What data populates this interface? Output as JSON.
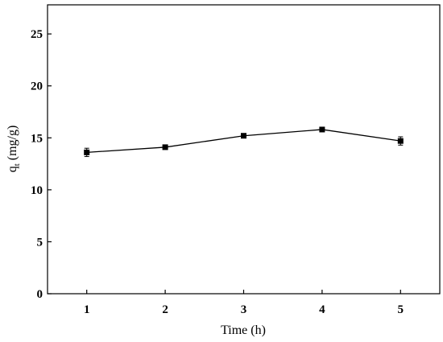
{
  "chart_data": {
    "type": "line",
    "title": "",
    "xlabel": "Time (h)",
    "ylabel_main": "q",
    "ylabel_sub": "t",
    "ylabel_unit": " (mg/g)",
    "x": [
      1,
      2,
      3,
      4,
      5
    ],
    "y": [
      13.6,
      14.1,
      15.2,
      15.8,
      14.7
    ],
    "y_error": [
      0.4,
      0.2,
      0.2,
      0.2,
      0.4
    ],
    "xlim": [
      0.5,
      5.5
    ],
    "ylim": [
      0,
      27.8
    ],
    "x_ticks": [
      "1",
      "2",
      "3",
      "4",
      "5"
    ],
    "y_ticks": [
      "0",
      "5",
      "10",
      "15",
      "20",
      "25"
    ],
    "marker": "square",
    "color": "#000000",
    "grid": false,
    "legend": "none"
  }
}
